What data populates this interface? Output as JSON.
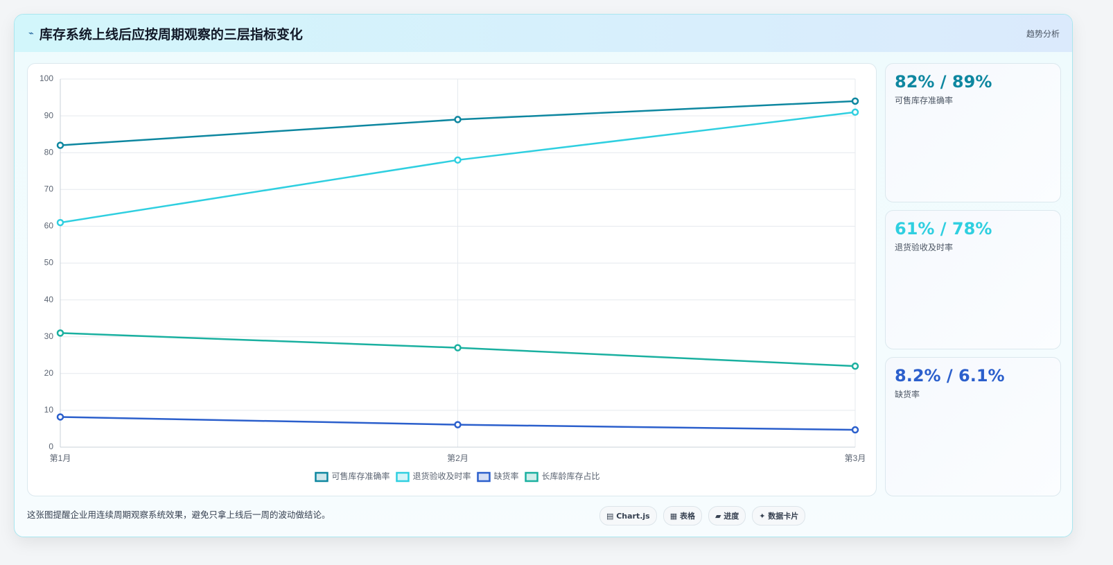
{
  "header": {
    "icon": "⌁",
    "title": "库存系统上线后应按周期观察的三层指标变化",
    "tag": "趋势分析"
  },
  "chart_data": {
    "type": "line",
    "categories": [
      "第1月",
      "第2月",
      "第3月"
    ],
    "series": [
      {
        "name": "可售库存准确率",
        "color": "#0e87a0",
        "values": [
          82,
          89,
          94
        ]
      },
      {
        "name": "退货验收及时率",
        "color": "#2fcfe0",
        "values": [
          61,
          78,
          91
        ]
      },
      {
        "name": "缺货率",
        "color": "#2b5fcc",
        "values": [
          8.2,
          6.1,
          4.7
        ]
      },
      {
        "name": "长库龄库存占比",
        "color": "#1ab0a0",
        "values": [
          31,
          27,
          22
        ]
      }
    ],
    "ylim": [
      0,
      100
    ],
    "yticks": [
      0,
      10,
      20,
      30,
      40,
      50,
      60,
      70,
      80,
      90,
      100
    ],
    "grid": true,
    "legend": "bottom"
  },
  "kpis": [
    {
      "value": "82% / 89%",
      "label": "可售库存准确率",
      "color": "#0e87a0"
    },
    {
      "value": "61% / 78%",
      "label": "退货验收及时率",
      "color": "#2fcfe0"
    },
    {
      "value": "8.2% / 6.1%",
      "label": "缺货率",
      "color": "#2b5fcc"
    }
  ],
  "footer": {
    "note": "这张图提醒企业用连续周期观察系统效果，避免只拿上线后一周的波动做结论。",
    "buttons": [
      "▤ Chart.js",
      "▦ 表格",
      "▰ 进度",
      "✦ 数据卡片"
    ]
  }
}
